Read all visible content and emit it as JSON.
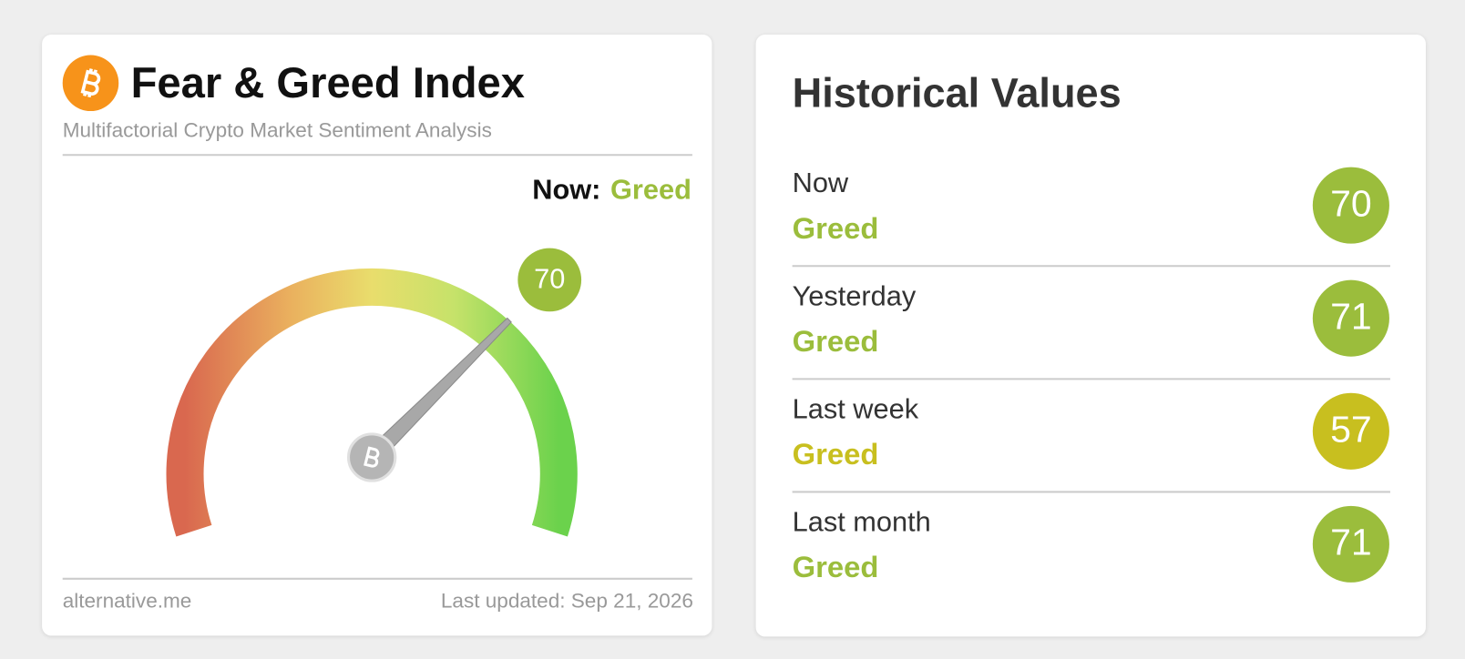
{
  "header": {
    "title": "Fear & Greed Index",
    "subtitle": "Multifactorial Crypto Market Sentiment Analysis"
  },
  "gauge": {
    "label": "Now:",
    "classification": "Greed",
    "value": 70,
    "range": [
      0,
      100
    ],
    "color": "#9bbd3c"
  },
  "footer": {
    "source": "alternative.me",
    "updated": "Last updated: Sep 21, 2026"
  },
  "history": {
    "title": "Historical Values",
    "rows": [
      {
        "period": "Now",
        "classification": "Greed",
        "value": 70,
        "color": "#9bbd3c"
      },
      {
        "period": "Yesterday",
        "classification": "Greed",
        "value": 71,
        "color": "#9bbd3c"
      },
      {
        "period": "Last week",
        "classification": "Greed",
        "value": 57,
        "color": "#c8bf1f"
      },
      {
        "period": "Last month",
        "classification": "Greed",
        "value": 71,
        "color": "#9bbd3c"
      }
    ]
  }
}
